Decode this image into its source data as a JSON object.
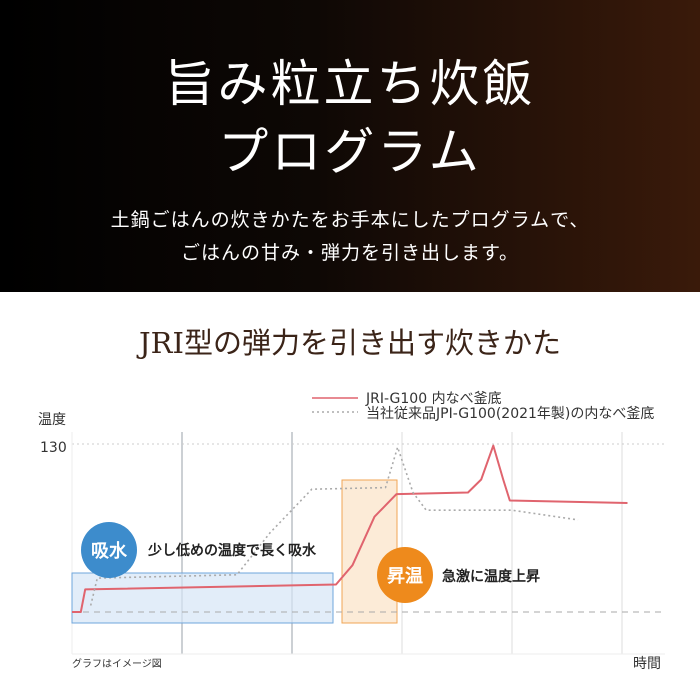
{
  "hero": {
    "title_line1": "旨み粒立ち炊飯",
    "title_line2": "プログラム",
    "subtitle_line1": "土鍋ごはんの炊きかたをお手本にしたプログラムで、",
    "subtitle_line2": "ごはんの甘み・弾力を引き出します。"
  },
  "section_title": "JRI型の弾力を引き出す炊きかた",
  "chart_data": {
    "type": "line",
    "ylabel": "温度",
    "xlabel": "時間",
    "y_ticks": [
      "130"
    ],
    "note": "グラフはイメージ図",
    "legend_position": "top-right",
    "grid": true,
    "series": [
      {
        "name": "JRI-G100 内なべ釜底",
        "color": "#e0646e",
        "style": "solid",
        "points": [
          [
            0,
            26
          ],
          [
            0.08,
            26
          ],
          [
            0.12,
            40
          ],
          [
            2.4,
            43
          ],
          [
            2.55,
            55
          ],
          [
            2.75,
            85
          ],
          [
            2.95,
            99
          ],
          [
            3.6,
            100
          ],
          [
            3.72,
            108
          ],
          [
            3.83,
            129
          ],
          [
            3.92,
            108
          ],
          [
            3.98,
            95
          ],
          [
            5.05,
            93.5
          ]
        ]
      },
      {
        "name": "当社従来品JPI-G100(2021年製)の内なべ釜底",
        "color": "#aaaaaa",
        "style": "dotted",
        "points": [
          [
            0.17,
            30
          ],
          [
            0.23,
            47
          ],
          [
            1.5,
            49
          ],
          [
            1.8,
            75
          ],
          [
            2.18,
            102
          ],
          [
            2.85,
            103
          ],
          [
            2.96,
            128
          ],
          [
            3.1,
            100
          ],
          [
            3.22,
            89
          ],
          [
            4.0,
            89
          ],
          [
            4.6,
            83
          ]
        ]
      }
    ],
    "annotations": [
      {
        "badge": "吸水",
        "text": "少し低めの温度で長く吸水",
        "color": "#3d8ccc"
      },
      {
        "badge": "昇温",
        "text": "急激に温度上昇",
        "color": "#ee8a1c"
      }
    ]
  }
}
